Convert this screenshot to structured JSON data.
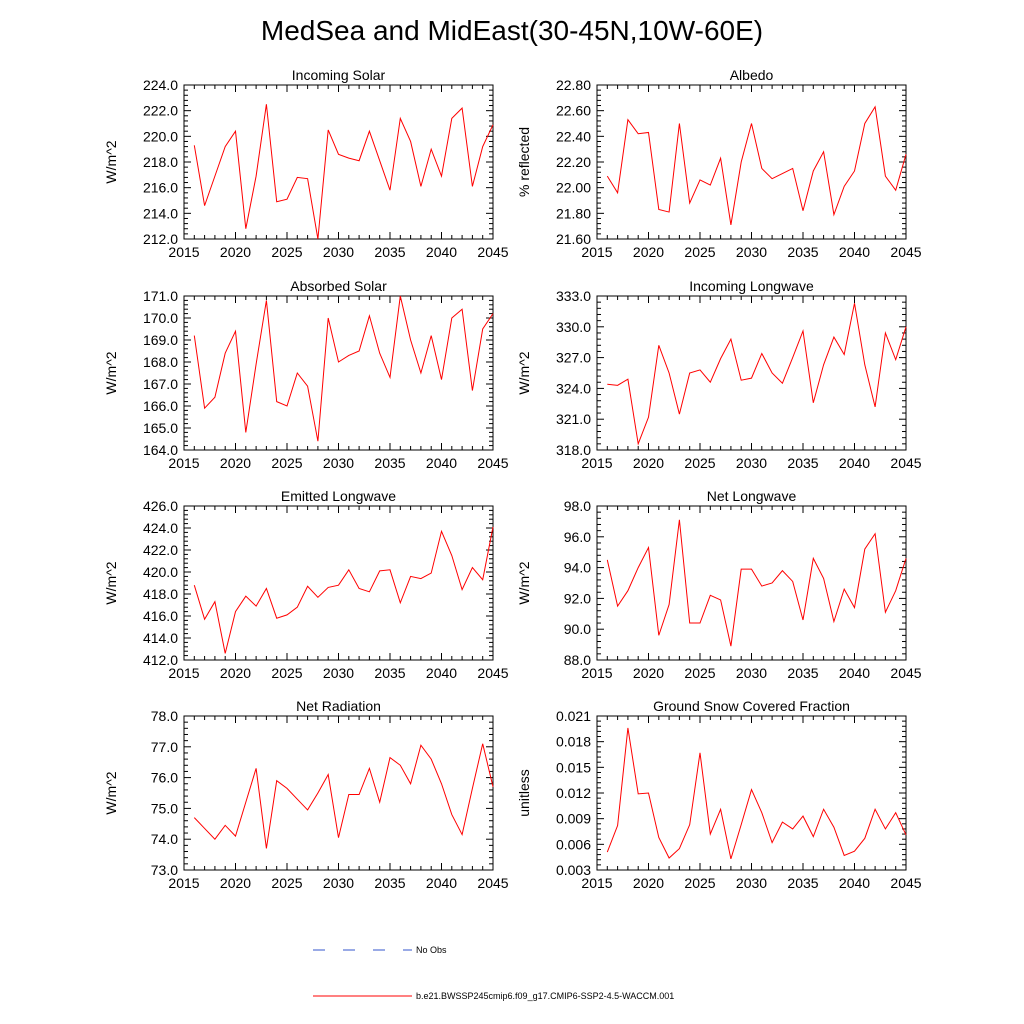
{
  "title": "MedSea and MidEast(30-45N,10W-60E)",
  "colors": {
    "model": "#ff0000",
    "obs": "#3355cc",
    "axis": "#000000"
  },
  "legend": {
    "obs_label": "No Obs",
    "model_label": "b.e21.BWSSP245cmip6.f09_g17.CMIP6-SSP2-4.5-WACCM.001"
  },
  "chart_data": [
    {
      "type": "line",
      "title": "Incoming Solar",
      "ylabel": "W/m^2",
      "xlim": [
        2015,
        2045
      ],
      "ylim": [
        212,
        224
      ],
      "yticks": [
        212,
        214,
        216,
        218,
        220,
        222,
        224
      ],
      "yfmt": 1,
      "xticks": [
        2015,
        2020,
        2025,
        2030,
        2035,
        2040,
        2045
      ],
      "x": [
        2016,
        2017,
        2018,
        2019,
        2020,
        2021,
        2022,
        2023,
        2024,
        2025,
        2026,
        2027,
        2028,
        2029,
        2030,
        2031,
        2032,
        2033,
        2034,
        2035,
        2036,
        2037,
        2038,
        2039,
        2040,
        2041,
        2042,
        2043,
        2044,
        2045
      ],
      "series": [
        {
          "name": "b.e21.BWSSP245cmip6.f09_g17.CMIP6-SSP2-4.5-WACCM.001",
          "values": [
            219.3,
            214.6,
            216.9,
            219.2,
            220.4,
            212.8,
            216.9,
            222.5,
            214.9,
            215.1,
            216.8,
            216.7,
            212.0,
            220.5,
            218.6,
            218.3,
            218.1,
            220.4,
            218.1,
            215.8,
            221.4,
            219.6,
            216.1,
            219.0,
            216.9,
            221.4,
            222.2,
            216.1,
            219.2,
            220.9
          ]
        }
      ]
    },
    {
      "type": "line",
      "title": "Albedo",
      "ylabel": "% reflected",
      "xlim": [
        2015,
        2045
      ],
      "ylim": [
        21.6,
        22.8
      ],
      "yticks": [
        21.6,
        21.8,
        22.0,
        22.2,
        22.4,
        22.6,
        22.8
      ],
      "yfmt": 2,
      "xticks": [
        2015,
        2020,
        2025,
        2030,
        2035,
        2040,
        2045
      ],
      "x": [
        2016,
        2017,
        2018,
        2019,
        2020,
        2021,
        2022,
        2023,
        2024,
        2025,
        2026,
        2027,
        2028,
        2029,
        2030,
        2031,
        2032,
        2033,
        2034,
        2035,
        2036,
        2037,
        2038,
        2039,
        2040,
        2041,
        2042,
        2043,
        2044,
        2045
      ],
      "series": [
        {
          "name": "b.e21.BWSSP245cmip6.f09_g17.CMIP6-SSP2-4.5-WACCM.001",
          "values": [
            22.09,
            21.96,
            22.53,
            22.42,
            22.43,
            21.83,
            21.81,
            22.5,
            21.88,
            22.06,
            22.02,
            22.23,
            21.71,
            22.2,
            22.5,
            22.15,
            22.07,
            22.11,
            22.15,
            21.82,
            22.13,
            22.28,
            21.79,
            22.01,
            22.13,
            22.5,
            22.63,
            22.09,
            21.98,
            22.26
          ]
        }
      ]
    },
    {
      "type": "line",
      "title": "Absorbed Solar",
      "ylabel": "W/m^2",
      "xlim": [
        2015,
        2045
      ],
      "ylim": [
        164,
        171
      ],
      "yticks": [
        164,
        165,
        166,
        167,
        168,
        169,
        170,
        171
      ],
      "yfmt": 1,
      "xticks": [
        2015,
        2020,
        2025,
        2030,
        2035,
        2040,
        2045
      ],
      "x": [
        2016,
        2017,
        2018,
        2019,
        2020,
        2021,
        2022,
        2023,
        2024,
        2025,
        2026,
        2027,
        2028,
        2029,
        2030,
        2031,
        2032,
        2033,
        2034,
        2035,
        2036,
        2037,
        2038,
        2039,
        2040,
        2041,
        2042,
        2043,
        2044,
        2045
      ],
      "series": [
        {
          "name": "b.e21.BWSSP245cmip6.f09_g17.CMIP6-SSP2-4.5-WACCM.001",
          "values": [
            169.2,
            165.9,
            166.4,
            168.4,
            169.4,
            164.8,
            167.9,
            170.8,
            166.2,
            166.0,
            167.5,
            166.9,
            164.4,
            170.0,
            168.0,
            168.3,
            168.5,
            170.1,
            168.4,
            167.3,
            171.0,
            169.0,
            167.5,
            169.2,
            167.2,
            170.0,
            170.4,
            166.7,
            169.5,
            170.2
          ]
        }
      ]
    },
    {
      "type": "line",
      "title": "Incoming Longwave",
      "ylabel": "W/m^2",
      "xlim": [
        2015,
        2045
      ],
      "ylim": [
        318,
        333
      ],
      "yticks": [
        318,
        321,
        324,
        327,
        330,
        333
      ],
      "yfmt": 1,
      "xticks": [
        2015,
        2020,
        2025,
        2030,
        2035,
        2040,
        2045
      ],
      "x": [
        2016,
        2017,
        2018,
        2019,
        2020,
        2021,
        2022,
        2023,
        2024,
        2025,
        2026,
        2027,
        2028,
        2029,
        2030,
        2031,
        2032,
        2033,
        2034,
        2035,
        2036,
        2037,
        2038,
        2039,
        2040,
        2041,
        2042,
        2043,
        2044,
        2045
      ],
      "series": [
        {
          "name": "b.e21.BWSSP245cmip6.f09_g17.CMIP6-SSP2-4.5-WACCM.001",
          "values": [
            324.4,
            324.3,
            324.9,
            318.6,
            321.2,
            328.2,
            325.5,
            321.5,
            325.5,
            325.8,
            324.6,
            326.9,
            328.8,
            324.8,
            325.0,
            327.4,
            325.5,
            324.5,
            327.0,
            329.6,
            322.6,
            326.3,
            329.0,
            327.3,
            332.3,
            326.3,
            322.2,
            329.4,
            326.8,
            330.0
          ]
        }
      ]
    },
    {
      "type": "line",
      "title": "Emitted Longwave",
      "ylabel": "W/m^2",
      "xlim": [
        2015,
        2045
      ],
      "ylim": [
        412,
        426
      ],
      "yticks": [
        412,
        414,
        416,
        418,
        420,
        422,
        424,
        426
      ],
      "yfmt": 1,
      "xticks": [
        2015,
        2020,
        2025,
        2030,
        2035,
        2040,
        2045
      ],
      "x": [
        2016,
        2017,
        2018,
        2019,
        2020,
        2021,
        2022,
        2023,
        2024,
        2025,
        2026,
        2027,
        2028,
        2029,
        2030,
        2031,
        2032,
        2033,
        2034,
        2035,
        2036,
        2037,
        2038,
        2039,
        2040,
        2041,
        2042,
        2043,
        2044,
        2045
      ],
      "series": [
        {
          "name": "b.e21.BWSSP245cmip6.f09_g17.CMIP6-SSP2-4.5-WACCM.001",
          "values": [
            418.8,
            415.7,
            417.3,
            412.6,
            416.4,
            417.8,
            416.9,
            418.5,
            415.8,
            416.1,
            416.8,
            418.7,
            417.7,
            418.6,
            418.8,
            420.2,
            418.5,
            418.2,
            420.1,
            420.2,
            417.2,
            419.6,
            419.4,
            419.9,
            423.7,
            421.5,
            418.4,
            420.4,
            419.3,
            424.1
          ]
        }
      ]
    },
    {
      "type": "line",
      "title": "Net Longwave",
      "ylabel": "W/m^2",
      "xlim": [
        2015,
        2045
      ],
      "ylim": [
        88,
        98
      ],
      "yticks": [
        88,
        90,
        92,
        94,
        96,
        98
      ],
      "yfmt": 1,
      "xticks": [
        2015,
        2020,
        2025,
        2030,
        2035,
        2040,
        2045
      ],
      "x": [
        2016,
        2017,
        2018,
        2019,
        2020,
        2021,
        2022,
        2023,
        2024,
        2025,
        2026,
        2027,
        2028,
        2029,
        2030,
        2031,
        2032,
        2033,
        2034,
        2035,
        2036,
        2037,
        2038,
        2039,
        2040,
        2041,
        2042,
        2043,
        2044,
        2045
      ],
      "series": [
        {
          "name": "b.e21.BWSSP245cmip6.f09_g17.CMIP6-SSP2-4.5-WACCM.001",
          "values": [
            94.5,
            91.5,
            92.5,
            94.0,
            95.3,
            89.6,
            91.6,
            97.1,
            90.4,
            90.4,
            92.2,
            91.9,
            88.9,
            93.9,
            93.9,
            92.8,
            93.0,
            93.8,
            93.1,
            90.6,
            94.6,
            93.3,
            90.5,
            92.6,
            91.4,
            95.2,
            96.2,
            91.1,
            92.5,
            94.6
          ]
        }
      ]
    },
    {
      "type": "line",
      "title": "Net Radiation",
      "ylabel": "W/m^2",
      "xlim": [
        2015,
        2045
      ],
      "ylim": [
        73,
        78
      ],
      "yticks": [
        73,
        74,
        75,
        76,
        77,
        78
      ],
      "yfmt": 1,
      "xticks": [
        2015,
        2020,
        2025,
        2030,
        2035,
        2040,
        2045
      ],
      "x": [
        2016,
        2017,
        2018,
        2019,
        2020,
        2021,
        2022,
        2023,
        2024,
        2025,
        2026,
        2027,
        2028,
        2029,
        2030,
        2031,
        2032,
        2033,
        2034,
        2035,
        2036,
        2037,
        2038,
        2039,
        2040,
        2041,
        2042,
        2043,
        2044,
        2045
      ],
      "series": [
        {
          "name": "b.e21.BWSSP245cmip6.f09_g17.CMIP6-SSP2-4.5-WACCM.001",
          "values": [
            74.7,
            74.35,
            74.0,
            74.45,
            74.1,
            75.2,
            76.3,
            73.7,
            75.9,
            75.65,
            75.3,
            74.95,
            75.5,
            76.1,
            74.05,
            75.45,
            75.45,
            76.3,
            75.2,
            76.65,
            76.4,
            75.8,
            77.05,
            76.6,
            75.8,
            74.8,
            74.15,
            75.65,
            77.1,
            75.7
          ]
        }
      ]
    },
    {
      "type": "line",
      "title": "Ground Snow Covered Fraction",
      "ylabel": "unitless",
      "xlim": [
        2015,
        2045
      ],
      "ylim": [
        0.003,
        0.021
      ],
      "yticks": [
        0.003,
        0.006,
        0.009,
        0.012,
        0.015,
        0.018,
        0.021
      ],
      "yfmt": 3,
      "xticks": [
        2015,
        2020,
        2025,
        2030,
        2035,
        2040,
        2045
      ],
      "x": [
        2016,
        2017,
        2018,
        2019,
        2020,
        2021,
        2022,
        2023,
        2024,
        2025,
        2026,
        2027,
        2028,
        2029,
        2030,
        2031,
        2032,
        2033,
        2034,
        2035,
        2036,
        2037,
        2038,
        2039,
        2040,
        2041,
        2042,
        2043,
        2044,
        2045
      ],
      "series": [
        {
          "name": "b.e21.BWSSP245cmip6.f09_g17.CMIP6-SSP2-4.5-WACCM.001",
          "values": [
            0.0051,
            0.0082,
            0.0196,
            0.0119,
            0.012,
            0.0068,
            0.0044,
            0.0055,
            0.0083,
            0.0167,
            0.0072,
            0.0101,
            0.0043,
            0.0083,
            0.0124,
            0.0097,
            0.0062,
            0.0086,
            0.0078,
            0.0093,
            0.0069,
            0.0101,
            0.008,
            0.0047,
            0.0052,
            0.0067,
            0.0101,
            0.0078,
            0.0097,
            0.0071
          ]
        }
      ]
    }
  ]
}
